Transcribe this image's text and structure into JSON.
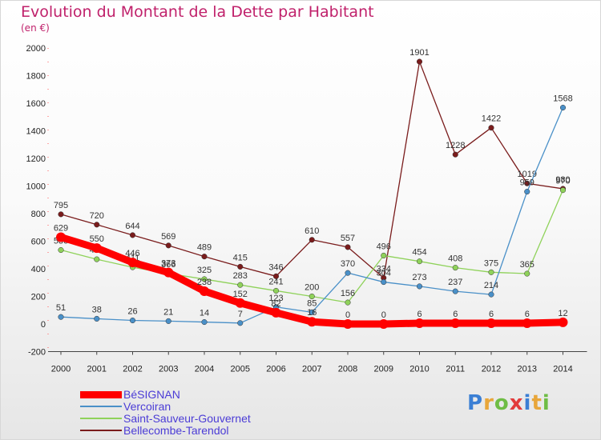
{
  "chart_data": {
    "type": "line",
    "title": "Evolution du Montant de la Dette par Habitant",
    "subtitle": "(en €)",
    "x": [
      "2000",
      "2001",
      "2002",
      "2003",
      "2004",
      "2005",
      "2006",
      "2007",
      "2008",
      "2009",
      "2010",
      "2011",
      "2012",
      "2013",
      "2014"
    ],
    "ylim": [
      -200,
      2000
    ],
    "yticks": [
      -200,
      0,
      200,
      400,
      600,
      800,
      1000,
      1200,
      1400,
      1600,
      1800,
      2000
    ],
    "grid": false,
    "legend_position": "bottom-left",
    "series": [
      {
        "name": "Bellecombe-Tarendol",
        "color": "#7a1c1c",
        "values": [
          795,
          720,
          644,
          569,
          489,
          415,
          346,
          610,
          557,
          334,
          1901,
          1228,
          1422,
          1019,
          980
        ]
      },
      {
        "name": "Saint-Sauveur-Gouvernet",
        "color": "#8fd25a",
        "values": [
          536,
          469,
          411,
          366,
          325,
          283,
          241,
          200,
          156,
          496,
          454,
          408,
          375,
          365,
          970
        ]
      },
      {
        "name": "Vercoiran",
        "color": "#4a90c8",
        "values": [
          51,
          38,
          26,
          21,
          14,
          7,
          123,
          85,
          370,
          304,
          273,
          237,
          214,
          959,
          1568
        ]
      },
      {
        "name": "BéSIGNAN",
        "color": "#ff0000",
        "values": [
          629,
          550,
          446,
          373,
          238,
          152,
          82,
          16,
          0,
          0,
          6,
          6,
          6,
          6,
          12
        ]
      }
    ]
  },
  "legend": [
    "BéSIGNAN",
    "Vercoiran",
    "Saint-Sauveur-Gouvernet",
    "Bellecombe-Tarendol"
  ],
  "logo_text": "Proxiti"
}
